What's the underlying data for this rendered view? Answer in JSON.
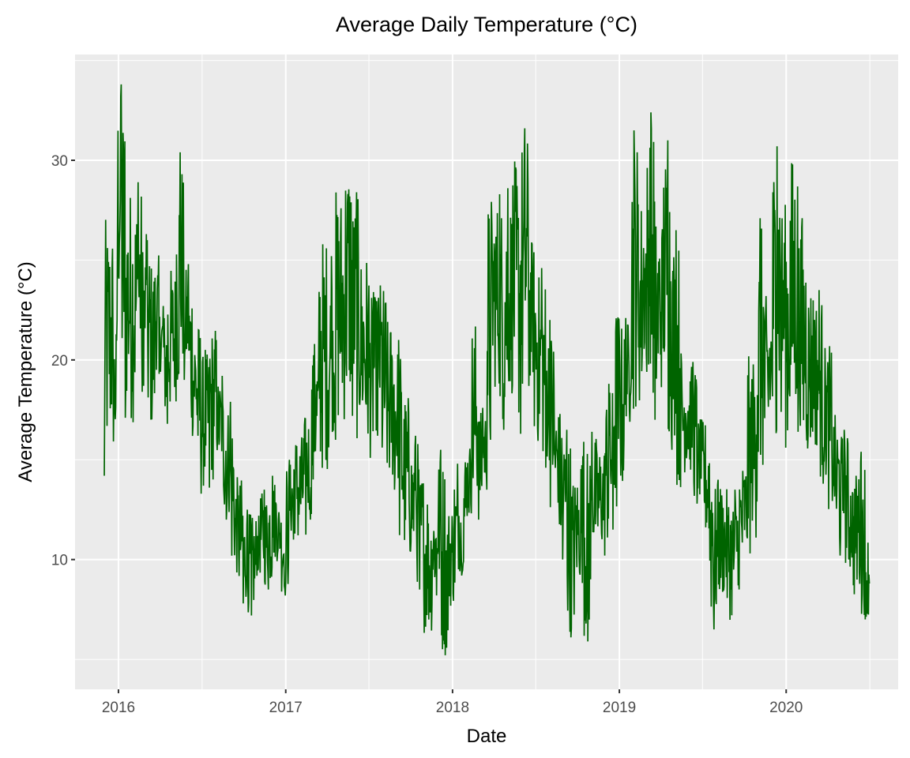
{
  "chart_data": {
    "type": "line",
    "title": "Average Daily Temperature (°C)",
    "xlabel": "Date",
    "ylabel": "Average Temperature (°C)",
    "x_ticks": [
      "2016",
      "2017",
      "2018",
      "2019",
      "2020"
    ],
    "y_ticks": [
      10,
      20,
      30
    ],
    "ylim": [
      3.5,
      35.3
    ],
    "xlim": [
      "2015-09-28",
      "2020-09-02"
    ],
    "date_range": [
      "2015-12-01",
      "2020-07-01"
    ],
    "grid": true,
    "legend": "none",
    "line_color": "#006400",
    "panel_background": "#EBEBEB",
    "sample_interval_days": 7,
    "series": [
      {
        "name": "Average Temperature",
        "values": [
          14.2,
          27.4,
          15.0,
          22.0,
          33.8,
          17.1,
          29.1,
          16.5,
          28.9,
          18.4,
          26.3,
          16.0,
          25.4,
          19.3,
          22.7,
          16.8,
          24.9,
          17.5,
          30.4,
          19.0,
          24.8,
          15.7,
          22.3,
          13.3,
          20.5,
          13.6,
          22.0,
          14.4,
          19.2,
          12.0,
          17.9,
          9.0,
          14.3,
          7.8,
          12.5,
          7.2,
          12.3,
          9.0,
          13.5,
          8.5,
          14.2,
          9.8,
          13.0,
          8.2,
          15.0,
          11.0,
          16.5,
          10.2,
          17.5,
          12.0,
          20.8,
          13.9,
          26.6,
          14.2,
          25.2,
          16.0,
          29.0,
          16.3,
          31.0,
          17.2,
          28.4,
          15.5,
          25.8,
          14.8,
          23.4,
          16.2,
          24.2,
          13.2,
          22.3,
          13.5,
          21.0,
          9.8,
          18.6,
          9.5,
          16.2,
          8.5,
          14.6,
          6.1,
          13.0,
          8.2,
          15.5,
          4.9,
          13.2,
          7.4,
          14.8,
          9.2,
          16.0,
          11.8,
          22.4,
          12.0,
          17.6,
          13.5,
          28.6,
          18.2,
          28.3,
          16.5,
          28.6,
          17.9,
          30.3,
          16.3,
          31.6,
          18.7,
          26.3,
          15.4,
          24.6,
          14.6,
          22.0,
          12.3,
          17.9,
          10.0,
          16.5,
          6.1,
          14.6,
          8.4,
          15.9,
          5.9,
          16.4,
          9.8,
          16.0,
          10.2,
          18.8,
          11.5,
          23.2,
          13.0,
          22.1,
          16.9,
          31.5,
          17.2,
          28.6,
          19.4,
          32.4,
          17.0,
          27.5,
          18.1,
          31.0,
          15.5,
          26.5,
          13.2,
          21.0,
          14.1,
          19.9,
          12.8,
          17.2,
          10.8,
          16.7,
          6.5,
          14.0,
          7.9,
          13.7,
          6.8,
          13.5,
          8.5,
          15.2,
          9.8,
          20.5,
          11.1,
          27.1,
          13.5,
          23.5,
          15.9,
          30.7,
          17.4,
          28.2,
          15.2,
          30.9,
          16.4,
          27.1,
          14.8,
          24.3,
          15.2,
          23.5,
          13.8,
          21.0,
          12.2,
          17.4,
          10.2,
          16.5,
          9.2,
          14.6,
          7.8,
          15.4,
          7.0,
          11.5
        ]
      }
    ]
  }
}
